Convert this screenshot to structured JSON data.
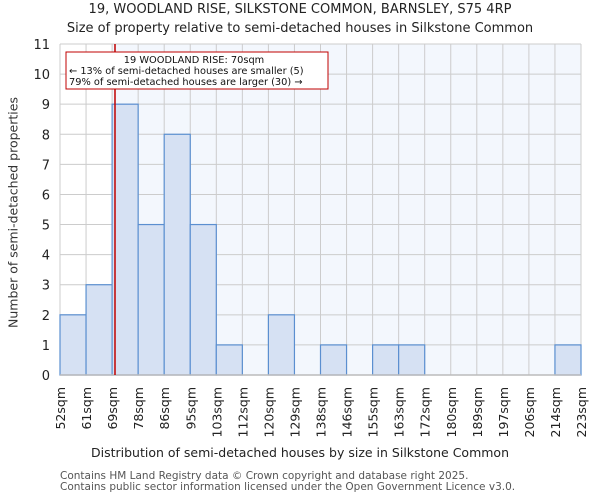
{
  "header": {
    "title": "19, WOODLAND RISE, SILKSTONE COMMON, BARNSLEY, S75 4RP",
    "subtitle": "Size of property relative to semi-detached houses in Silkstone Common"
  },
  "annotation": {
    "line1": "19 WOODLAND RISE: 70sqm",
    "line2": "← 13% of semi-detached houses are smaller (5)",
    "line3": "79% of semi-detached houses are larger (30) →"
  },
  "footer": {
    "line1": "Contains HM Land Registry data © Crown copyright and database right 2025.",
    "line2": "Contains public sector information licensed under the Open Government Licence v3.0."
  },
  "colors": {
    "bar_fill": "#d6e1f3",
    "bar_edge": "#5b8fd0",
    "marker": "#c00000",
    "grid": "#cccccc",
    "highlight_bg": "#f3f7fd"
  },
  "chart_data": {
    "type": "bar",
    "title": "19, WOODLAND RISE, SILKSTONE COMMON, BARNSLEY, S75 4RP",
    "subtitle": "Size of property relative to semi-detached houses in Silkstone Common",
    "xlabel": "Distribution of semi-detached houses by size in Silkstone Common",
    "ylabel": "Number of semi-detached properties",
    "categories": [
      "52sqm",
      "61sqm",
      "69sqm",
      "78sqm",
      "86sqm",
      "95sqm",
      "103sqm",
      "112sqm",
      "120sqm",
      "129sqm",
      "138sqm",
      "146sqm",
      "155sqm",
      "163sqm",
      "172sqm",
      "180sqm",
      "189sqm",
      "197sqm",
      "206sqm",
      "214sqm",
      "223sqm"
    ],
    "values": [
      2,
      3,
      9,
      5,
      8,
      5,
      1,
      0,
      2,
      0,
      1,
      0,
      1,
      1,
      0,
      0,
      0,
      0,
      0,
      1
    ],
    "yticks": [
      0,
      1,
      2,
      3,
      4,
      5,
      6,
      7,
      8,
      9,
      10,
      11
    ],
    "ylim": [
      0,
      11
    ],
    "grid": true,
    "marker_value": 70,
    "marker_label": "19 WOODLAND RISE: 70sqm",
    "legend": null
  }
}
